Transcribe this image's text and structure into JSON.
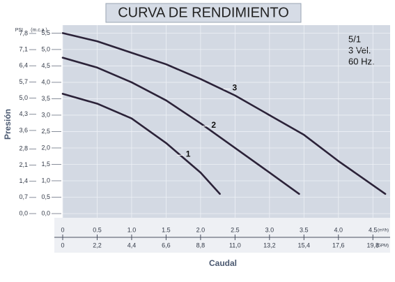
{
  "chart_data": {
    "type": "line",
    "title": "CURVA DE RENDIMIENTO",
    "info_lines": [
      "5/1",
      "3 Vel.",
      "60 Hz."
    ],
    "y_label": "Presión",
    "x_label": "Caudal",
    "y_unit": "(m.c.a.)",
    "y2_unit": "PSI",
    "x_unit": "(m³/h)",
    "x2_unit": "(GPM)",
    "grid": true,
    "xlim": [
      0,
      4.75
    ],
    "xticks": [
      0,
      0.5,
      {
        "value": 1,
        "label": "1.0"
      },
      1.5,
      {
        "value": 2,
        "label": "2.0"
      },
      2.5,
      {
        "value": 3,
        "label": "3.0"
      },
      3.5,
      {
        "value": 4,
        "label": "4.0"
      },
      4.5
    ],
    "x2lim": [
      0,
      20.9
    ],
    "x2ticks": [
      0,
      {
        "value": 2.2,
        "label": "2,2"
      },
      {
        "value": 4.4,
        "label": "4,4"
      },
      {
        "value": 6.6,
        "label": "6,6"
      },
      {
        "value": 8.8,
        "label": "8,8"
      },
      {
        "value": 11,
        "label": "11,0"
      },
      {
        "value": 13.2,
        "label": "13,2"
      },
      {
        "value": 15.4,
        "label": "15,4"
      },
      {
        "value": 17.6,
        "label": "17,6"
      },
      {
        "value": 19.8,
        "label": "19,8"
      }
    ],
    "ylim": [
      0,
      5.7
    ],
    "yticks": [
      {
        "value": 0,
        "label": "0,0"
      },
      {
        "value": 0.5,
        "label": "0,5"
      },
      {
        "value": 1,
        "label": "1,0"
      },
      {
        "value": 1.5,
        "label": "1,5"
      },
      {
        "value": 2,
        "label": "2,0"
      },
      {
        "value": 2.5,
        "label": "2,5"
      },
      {
        "value": 3,
        "label": "3,0"
      },
      {
        "value": 3.5,
        "label": "3,5"
      },
      {
        "value": 4,
        "label": "4,0"
      },
      {
        "value": 4.5,
        "label": "4,5"
      },
      {
        "value": 5,
        "label": "5,0"
      },
      {
        "value": 5.5,
        "label": "5,5"
      }
    ],
    "y2lim": [
      0,
      8.1
    ],
    "y2ticks": [
      {
        "value": 0,
        "label": "0,0"
      },
      {
        "value": 0.7,
        "label": "0,7"
      },
      {
        "value": 1.4,
        "label": "1,4"
      },
      {
        "value": 2.1,
        "label": "2,1"
      },
      {
        "value": 2.8,
        "label": "2,8"
      },
      {
        "value": 3.6,
        "label": "3,6"
      },
      {
        "value": 4.3,
        "label": "4,3"
      },
      {
        "value": 5,
        "label": "5,0"
      },
      {
        "value": 5.7,
        "label": "5,7"
      },
      {
        "value": 6.4,
        "label": "6,4"
      },
      {
        "value": 7.1,
        "label": "7,1"
      },
      {
        "value": 7.8,
        "label": "7,8"
      }
    ],
    "series": [
      {
        "name": "1",
        "color": "#2b2238",
        "x": [
          0,
          0.5,
          1,
          1.5,
          2,
          2.28
        ],
        "values": [
          3.65,
          3.35,
          2.9,
          2.15,
          1.25,
          0.6
        ]
      },
      {
        "name": "2",
        "color": "#2b2238",
        "x": [
          0,
          0.5,
          1,
          1.5,
          2,
          2.5,
          3,
          3.43
        ],
        "values": [
          4.75,
          4.45,
          4.0,
          3.45,
          2.75,
          2.0,
          1.25,
          0.6
        ]
      },
      {
        "name": "3",
        "color": "#2b2238",
        "x": [
          0,
          0.5,
          1,
          1.5,
          2,
          2.5,
          3,
          3.5,
          4,
          4.68
        ],
        "values": [
          5.5,
          5.25,
          4.9,
          4.55,
          4.1,
          3.6,
          3.0,
          2.4,
          1.6,
          0.6
        ]
      }
    ]
  }
}
